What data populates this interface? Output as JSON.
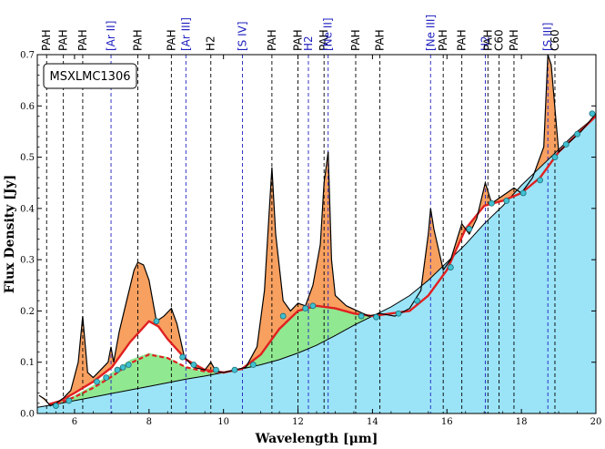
{
  "chart_data": {
    "type": "line",
    "title": "MSXLMC1306",
    "xlabel": "Wavelength [μm]",
    "ylabel": "Flux Density [Jy]",
    "xlim": [
      5.0,
      20.0
    ],
    "ylim": [
      0.0,
      0.7
    ],
    "x_ticks": [
      6,
      8,
      10,
      12,
      14,
      16,
      18,
      20
    ],
    "y_ticks": [
      0.0,
      0.1,
      0.2,
      0.3,
      0.4,
      0.5,
      0.6,
      0.7
    ],
    "x_tick_labels": [
      "6",
      "8",
      "10",
      "12",
      "14",
      "16",
      "18",
      "20"
    ],
    "y_tick_labels": [
      "0.0",
      "0.1",
      "0.2",
      "0.3",
      "0.4",
      "0.5",
      "0.6",
      "0.7"
    ],
    "colors": {
      "continuum": "#9be4f8",
      "plateau": "#90e890",
      "features": "#f8a060",
      "fit": "#e02020",
      "spectrum": "#000000",
      "anchor": "#40c0d0",
      "ionic_line": "#2020c0",
      "pah_line": "#000000"
    },
    "features": [
      {
        "label": "PAH",
        "x": 5.25,
        "kind": "pah"
      },
      {
        "label": "PAH",
        "x": 5.7,
        "kind": "pah"
      },
      {
        "label": "PAH",
        "x": 6.22,
        "kind": "pah"
      },
      {
        "label": "[Ar II]",
        "x": 6.98,
        "kind": "ion"
      },
      {
        "label": "PAH",
        "x": 7.7,
        "kind": "pah"
      },
      {
        "label": "PAH",
        "x": 8.6,
        "kind": "pah"
      },
      {
        "label": "[Ar III]",
        "x": 8.99,
        "kind": "ion"
      },
      {
        "label": "H2",
        "x": 9.66,
        "kind": "pah"
      },
      {
        "label": "[S IV]",
        "x": 10.51,
        "kind": "ion"
      },
      {
        "label": "PAH",
        "x": 11.3,
        "kind": "pah"
      },
      {
        "label": "PAH",
        "x": 12.0,
        "kind": "pah"
      },
      {
        "label": "H2",
        "x": 12.28,
        "kind": "ion"
      },
      {
        "label": "PAH",
        "x": 12.7,
        "kind": "pah"
      },
      {
        "label": "[Ne II]",
        "x": 12.81,
        "kind": "ion"
      },
      {
        "label": "PAH",
        "x": 13.55,
        "kind": "pah"
      },
      {
        "label": "PAH",
        "x": 14.2,
        "kind": "pah"
      },
      {
        "label": "[Ne III]",
        "x": 15.56,
        "kind": "ion"
      },
      {
        "label": "PAH",
        "x": 15.9,
        "kind": "pah"
      },
      {
        "label": "PAH",
        "x": 16.4,
        "kind": "pah"
      },
      {
        "label": "H2",
        "x": 17.03,
        "kind": "ion"
      },
      {
        "label": "PAH",
        "x": 17.1,
        "kind": "pah"
      },
      {
        "label": "C60",
        "x": 17.4,
        "kind": "pah"
      },
      {
        "label": "PAH",
        "x": 17.8,
        "kind": "pah"
      },
      {
        "label": "[S III]",
        "x": 18.71,
        "kind": "ion"
      },
      {
        "label": "C60",
        "x": 18.9,
        "kind": "pah"
      }
    ],
    "series": [
      {
        "name": "continuum",
        "x": [
          5.0,
          5.5,
          6.0,
          6.5,
          7.0,
          7.5,
          8.0,
          8.5,
          9.0,
          9.5,
          10.0,
          10.5,
          11.0,
          11.5,
          12.0,
          12.5,
          13.0,
          13.5,
          14.0,
          14.5,
          15.0,
          15.5,
          16.0,
          16.5,
          17.0,
          17.5,
          18.0,
          18.5,
          19.0,
          19.5,
          20.0
        ],
        "y": [
          0.012,
          0.018,
          0.025,
          0.032,
          0.039,
          0.046,
          0.053,
          0.06,
          0.067,
          0.073,
          0.08,
          0.087,
          0.095,
          0.105,
          0.118,
          0.133,
          0.152,
          0.172,
          0.19,
          0.208,
          0.23,
          0.26,
          0.295,
          0.33,
          0.37,
          0.405,
          0.445,
          0.48,
          0.515,
          0.55,
          0.58
        ]
      },
      {
        "name": "plateau",
        "x": [
          5.3,
          5.6,
          6.0,
          6.5,
          7.0,
          7.5,
          8.0,
          8.5,
          9.0,
          9.5,
          10.0,
          10.5,
          11.0,
          11.5,
          12.0,
          12.5,
          13.0,
          13.5,
          14.0
        ],
        "y": [
          0.018,
          0.022,
          0.035,
          0.055,
          0.08,
          0.105,
          0.118,
          0.11,
          0.09,
          0.082,
          0.08,
          0.086,
          0.115,
          0.165,
          0.2,
          0.21,
          0.205,
          0.195,
          0.19
        ]
      },
      {
        "name": "fit",
        "x": [
          5.3,
          5.6,
          6.0,
          6.5,
          7.0,
          7.5,
          8.0,
          8.25,
          8.5,
          9.0,
          9.5,
          10.0,
          10.5,
          11.0,
          11.5,
          12.0,
          12.5,
          13.0,
          13.5,
          14.0,
          14.5,
          15.0,
          15.5,
          16.0,
          16.5,
          17.0,
          17.5,
          18.0,
          18.5,
          19.0,
          19.5,
          20.0
        ],
        "y": [
          0.018,
          0.024,
          0.04,
          0.062,
          0.09,
          0.14,
          0.18,
          0.17,
          0.145,
          0.105,
          0.085,
          0.08,
          0.087,
          0.115,
          0.165,
          0.2,
          0.21,
          0.205,
          0.195,
          0.19,
          0.195,
          0.2,
          0.23,
          0.28,
          0.36,
          0.405,
          0.415,
          0.43,
          0.46,
          0.51,
          0.545,
          0.58
        ]
      },
      {
        "name": "spectrum",
        "x": [
          5.05,
          5.2,
          5.35,
          5.5,
          5.7,
          5.9,
          6.1,
          6.22,
          6.35,
          6.5,
          6.7,
          6.9,
          6.98,
          7.05,
          7.2,
          7.4,
          7.6,
          7.7,
          7.85,
          8.0,
          8.2,
          8.4,
          8.6,
          8.75,
          8.95,
          9.2,
          9.5,
          9.66,
          9.8,
          10.0,
          10.3,
          10.6,
          10.9,
          11.1,
          11.25,
          11.3,
          11.4,
          11.6,
          11.8,
          12.0,
          12.2,
          12.4,
          12.6,
          12.7,
          12.81,
          12.9,
          13.0,
          13.3,
          13.6,
          13.9,
          14.2,
          14.6,
          15.0,
          15.3,
          15.5,
          15.56,
          15.65,
          15.9,
          16.1,
          16.4,
          16.6,
          16.8,
          17.03,
          17.2,
          17.4,
          17.6,
          17.8,
          18.0,
          18.3,
          18.6,
          18.71,
          18.8,
          19.0,
          19.3,
          19.6,
          20.0
        ],
        "y": [
          0.035,
          0.028,
          0.015,
          0.02,
          0.03,
          0.045,
          0.1,
          0.19,
          0.08,
          0.07,
          0.085,
          0.1,
          0.13,
          0.1,
          0.16,
          0.22,
          0.28,
          0.295,
          0.29,
          0.26,
          0.18,
          0.19,
          0.205,
          0.175,
          0.11,
          0.09,
          0.085,
          0.1,
          0.082,
          0.08,
          0.085,
          0.09,
          0.13,
          0.24,
          0.42,
          0.48,
          0.35,
          0.22,
          0.2,
          0.215,
          0.21,
          0.25,
          0.33,
          0.45,
          0.51,
          0.3,
          0.23,
          0.21,
          0.2,
          0.19,
          0.195,
          0.19,
          0.205,
          0.24,
          0.35,
          0.4,
          0.36,
          0.28,
          0.3,
          0.37,
          0.35,
          0.38,
          0.45,
          0.41,
          0.42,
          0.43,
          0.44,
          0.43,
          0.46,
          0.52,
          0.7,
          0.68,
          0.51,
          0.53,
          0.55,
          0.585
        ]
      },
      {
        "name": "anchor_points",
        "x": [
          5.5,
          5.85,
          6.6,
          6.85,
          7.15,
          7.3,
          7.45,
          8.2,
          8.9,
          9.2,
          9.8,
          10.3,
          10.8,
          11.6,
          12.2,
          12.4,
          13.7,
          14.1,
          14.7,
          15.2,
          16.1,
          16.6,
          17.2,
          17.6,
          18.05,
          18.5,
          18.9,
          19.2,
          19.5,
          19.9
        ],
        "y": [
          0.015,
          0.025,
          0.062,
          0.07,
          0.085,
          0.09,
          0.095,
          0.18,
          0.11,
          0.095,
          0.085,
          0.085,
          0.095,
          0.19,
          0.205,
          0.21,
          0.19,
          0.188,
          0.195,
          0.22,
          0.285,
          0.36,
          0.41,
          0.415,
          0.43,
          0.455,
          0.5,
          0.525,
          0.545,
          0.585
        ]
      },
      {
        "name": "dashed_plateau",
        "x": [
          5.5,
          6.0,
          6.5,
          7.0,
          7.5,
          8.0,
          8.5,
          9.0,
          9.5,
          10.0
        ],
        "y": [
          0.018,
          0.032,
          0.05,
          0.072,
          0.098,
          0.115,
          0.108,
          0.09,
          0.082,
          0.08
        ]
      }
    ]
  }
}
